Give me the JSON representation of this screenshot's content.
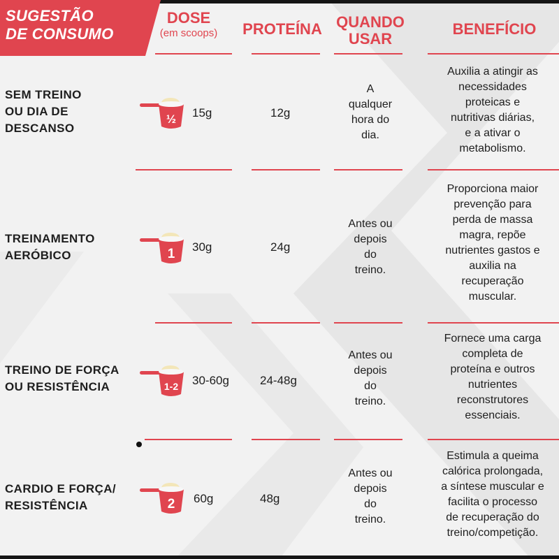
{
  "banner": {
    "line1": "SUGESTÃO",
    "line2": "DE CONSUMO"
  },
  "headers": {
    "dose": "DOSE",
    "dose_sub": "(em scoops)",
    "protein": "PROTEÍNA",
    "when_line1": "QUANDO",
    "when_line2": "USAR",
    "benefit": "BENEFÍCIO"
  },
  "colors": {
    "accent": "#e0454f",
    "text": "#1e1e1e",
    "background": "#f2f2f2"
  },
  "rows": [
    {
      "label": [
        "SEM TREINO",
        "OU DIA DE",
        "DESCANSO"
      ],
      "scoop_icon": "scoop-half-icon",
      "scoop": "½",
      "dose": "15g",
      "protein": "12g",
      "when": [
        "A",
        "qualquer",
        "hora do",
        "dia."
      ],
      "benefit": [
        "Auxilia a atingir as",
        "necessidades",
        "proteicas e",
        "nutritivas diárias,",
        "e a ativar o",
        "metabolismo."
      ]
    },
    {
      "label": [
        "TREINAMENTO",
        "AERÓBICO"
      ],
      "scoop_icon": "scoop-one-icon",
      "scoop": "1",
      "dose": "30g",
      "protein": "24g",
      "when": [
        "Antes ou",
        "depois",
        "do",
        "treino."
      ],
      "benefit": [
        "Proporciona maior",
        "prevenção para",
        "perda de massa",
        "magra, repõe",
        "nutrientes gastos e",
        "auxilia na",
        "recuperação",
        "muscular."
      ]
    },
    {
      "label": [
        "TREINO DE FORÇA",
        "OU RESISTÊNCIA"
      ],
      "scoop_icon": "scoop-one-two-icon",
      "scoop": "1-2",
      "dose": "30-60g",
      "protein": "24-48g",
      "when": [
        "Antes ou",
        "depois",
        "do",
        "treino."
      ],
      "benefit": [
        "Fornece uma carga",
        "completa de",
        "proteína e outros",
        "nutrientes",
        "reconstrutores",
        "essenciais."
      ]
    },
    {
      "label": [
        "CARDIO E FORÇA/",
        "RESISTÊNCIA"
      ],
      "scoop_icon": "scoop-two-icon",
      "scoop": "2",
      "dose": "60g",
      "protein": "48g",
      "when": [
        "Antes ou",
        "depois",
        "do",
        "treino."
      ],
      "benefit": [
        "Estimula a queima",
        "calórica prolongada,",
        "a síntese muscular e",
        "facilita o processo",
        "de recuperação do",
        "treino/competição."
      ]
    }
  ]
}
